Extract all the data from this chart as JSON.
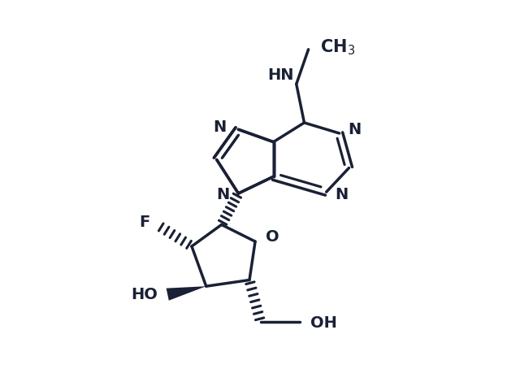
{
  "bg_color": "#ffffff",
  "line_color": "#1a2035",
  "lw": 2.5,
  "lw_double_inner": 2.0,
  "fontsize": 14,
  "figsize": [
    6.4,
    4.7
  ],
  "dpi": 100,
  "xlim": [
    0,
    10
  ],
  "ylim": [
    0,
    7.8
  ]
}
